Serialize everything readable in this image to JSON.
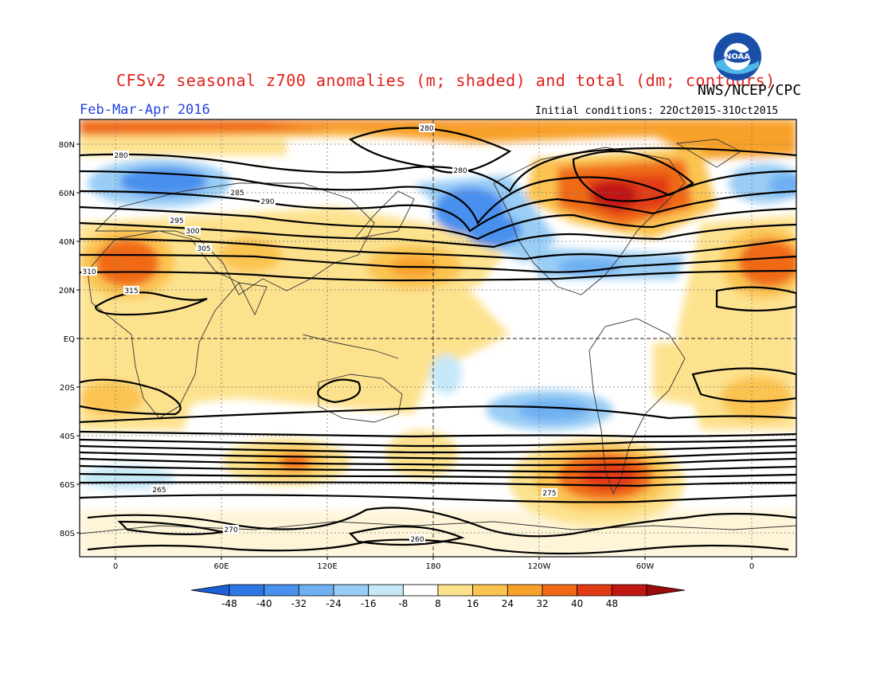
{
  "title": "CFSv2 seasonal z700 anomalies (m; shaded) and total (dm; contours)",
  "agency": "NWS/NCEP/CPC",
  "season": "Feb-Mar-Apr 2016",
  "initial_conditions": "Initial conditions: 22Oct2015-31Oct2015",
  "logo_text": "NOAA",
  "lat_labels": [
    "80N",
    "60N",
    "40N",
    "20N",
    "EQ",
    "20S",
    "40S",
    "60S",
    "80S"
  ],
  "lon_labels": [
    "0",
    "60E",
    "120E",
    "180",
    "120W",
    "60W",
    "0"
  ],
  "colorbar": {
    "ticks": [
      "-48",
      "-40",
      "-32",
      "-24",
      "-16",
      "-8",
      "8",
      "16",
      "24",
      "32",
      "40",
      "48"
    ],
    "colors": [
      "#1c5fd6",
      "#2e78e6",
      "#4a90ee",
      "#6fb0f2",
      "#99cdf5",
      "#c4e8f8",
      "#ffffff",
      "#fde28e",
      "#fbc451",
      "#f8a12a",
      "#f06a16",
      "#e23a12",
      "#c01712",
      "#980c0c"
    ]
  },
  "contour_labels": [
    "280",
    "280",
    "280",
    "285",
    "290",
    "295",
    "300",
    "305",
    "310",
    "315",
    "265",
    "270",
    "275",
    "260"
  ]
}
